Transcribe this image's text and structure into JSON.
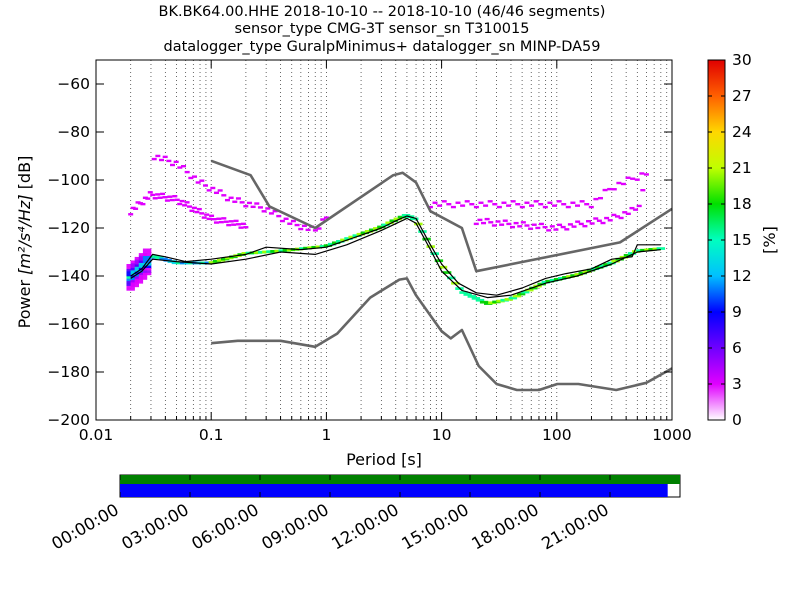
{
  "chart_data": {
    "type": "heatmap",
    "title_lines": [
      "BK.BK64.00.HHE   2018-10-10 -- 2018-10-10  (46/46 segments)",
      "sensor_type CMG-3T sensor_sn T310015",
      "datalogger_type GuralpMinimus+ datalogger_sn MINP-DA59"
    ],
    "xlabel": "Period [s]",
    "ylabel_prefix": "Power ",
    "ylabel_math": "[m²/s⁴/Hz]",
    "ylabel_suffix": " [dB]",
    "x_scale": "log",
    "xlim": [
      0.01,
      1000
    ],
    "ylim": [
      -200,
      -50
    ],
    "x_ticks": [
      0.01,
      0.1,
      1,
      10,
      100,
      1000
    ],
    "x_tick_labels": [
      "0.01",
      "0.1",
      "1",
      "10",
      "100",
      "1000"
    ],
    "y_ticks": [
      -200,
      -180,
      -160,
      -140,
      -120,
      -100,
      -80,
      -60
    ],
    "y_tick_labels": [
      "−200",
      "−180",
      "−160",
      "−140",
      "−120",
      "−100",
      "−80",
      "−60"
    ],
    "grid": "dotted-vertical",
    "colorbar": {
      "label": "[%]",
      "range": [
        0,
        30
      ],
      "ticks": [
        0,
        3,
        6,
        9,
        12,
        15,
        18,
        21,
        24,
        27,
        30
      ],
      "tick_labels": [
        "0",
        "3",
        "6",
        "9",
        "12",
        "15",
        "18",
        "21",
        "24",
        "27",
        "30"
      ]
    },
    "series": [
      {
        "name": "",
        "role": "noise-model-high",
        "color": "#666666",
        "points": [
          [
            0.1,
            -92
          ],
          [
            0.22,
            -98
          ],
          [
            0.32,
            -111
          ],
          [
            0.8,
            -120
          ],
          [
            3.8,
            -98
          ],
          [
            4.6,
            -97
          ],
          [
            6,
            -101
          ],
          [
            8,
            -113
          ],
          [
            15,
            -120
          ],
          [
            20,
            -138
          ],
          [
            354,
            -126
          ],
          [
            1000,
            -112
          ]
        ]
      },
      {
        "name": "",
        "role": "noise-model-low",
        "color": "#666666",
        "points": [
          [
            0.1,
            -168
          ],
          [
            0.17,
            -167
          ],
          [
            0.4,
            -167
          ],
          [
            0.8,
            -169.5
          ],
          [
            1.24,
            -164
          ],
          [
            2.4,
            -149
          ],
          [
            4.3,
            -141.5
          ],
          [
            5,
            -141
          ],
          [
            6,
            -148
          ],
          [
            10,
            -163
          ],
          [
            12,
            -166
          ],
          [
            15,
            -162.5
          ],
          [
            21,
            -177.5
          ],
          [
            30,
            -185
          ],
          [
            45,
            -187.5
          ],
          [
            70,
            -187.5
          ],
          [
            101,
            -185
          ],
          [
            154,
            -185
          ],
          [
            328,
            -187.5
          ],
          [
            600,
            -184.5
          ],
          [
            1000,
            -178.5
          ]
        ]
      },
      {
        "name": "",
        "role": "median",
        "color": "#000000",
        "points": [
          [
            0.02,
            -140
          ],
          [
            0.025,
            -137
          ],
          [
            0.031,
            -131
          ],
          [
            0.04,
            -132
          ],
          [
            0.06,
            -134
          ],
          [
            0.1,
            -133
          ],
          [
            0.2,
            -131
          ],
          [
            0.3,
            -128
          ],
          [
            0.6,
            -129
          ],
          [
            1,
            -128
          ],
          [
            2,
            -123
          ],
          [
            3,
            -120
          ],
          [
            4,
            -117
          ],
          [
            5,
            -115
          ],
          [
            6,
            -116
          ],
          [
            8,
            -127
          ],
          [
            10,
            -135
          ],
          [
            14,
            -143
          ],
          [
            20,
            -147
          ],
          [
            30,
            -148
          ],
          [
            50,
            -145
          ],
          [
            80,
            -141
          ],
          [
            120,
            -139
          ],
          [
            200,
            -137
          ],
          [
            300,
            -133
          ],
          [
            450,
            -132
          ],
          [
            500,
            -127
          ],
          [
            800,
            -127
          ]
        ]
      },
      {
        "name": "",
        "role": "mean",
        "color": "#000000",
        "points": [
          [
            0.02,
            -141
          ],
          [
            0.025,
            -138
          ],
          [
            0.031,
            -133
          ],
          [
            0.05,
            -134
          ],
          [
            0.1,
            -135
          ],
          [
            0.2,
            -133
          ],
          [
            0.4,
            -130
          ],
          [
            0.8,
            -131
          ],
          [
            1.5,
            -127
          ],
          [
            3,
            -121
          ],
          [
            5,
            -116
          ],
          [
            6,
            -118
          ],
          [
            8,
            -129
          ],
          [
            10,
            -138
          ],
          [
            15,
            -146
          ],
          [
            25,
            -149
          ],
          [
            40,
            -148
          ],
          [
            80,
            -143
          ],
          [
            150,
            -140
          ],
          [
            300,
            -135
          ],
          [
            500,
            -130
          ],
          [
            800,
            -129
          ]
        ]
      },
      {
        "name": "",
        "role": "density-core",
        "color": "#00d6e6",
        "points": [
          [
            0.02,
            -141
          ],
          [
            0.025,
            -137
          ],
          [
            0.031,
            -132
          ],
          [
            0.05,
            -135
          ],
          [
            0.1,
            -135
          ],
          [
            0.2,
            -131
          ],
          [
            0.4,
            -130
          ],
          [
            1,
            -128
          ],
          [
            2,
            -123
          ],
          [
            3,
            -120
          ],
          [
            4,
            -117
          ],
          [
            5,
            -115
          ],
          [
            6,
            -117
          ],
          [
            8,
            -128
          ],
          [
            10,
            -136
          ],
          [
            15,
            -147
          ],
          [
            25,
            -152
          ],
          [
            40,
            -150
          ],
          [
            80,
            -143
          ],
          [
            150,
            -140
          ],
          [
            300,
            -135
          ],
          [
            500,
            -130
          ],
          [
            800,
            -129
          ]
        ]
      },
      {
        "name": "",
        "role": "density-spread-upper",
        "color": "#8a00ff",
        "points": [
          [
            0.03,
            -130
          ],
          [
            0.1,
            -128
          ],
          [
            0.3,
            -126
          ],
          [
            1,
            -125
          ],
          [
            3,
            -119
          ],
          [
            5,
            -113
          ],
          [
            8,
            -123
          ],
          [
            12,
            -133
          ],
          [
            20,
            -141
          ],
          [
            40,
            -137
          ],
          [
            100,
            -130
          ],
          [
            300,
            -126
          ],
          [
            800,
            -124
          ]
        ]
      },
      {
        "name": "",
        "role": "density-spread-lower",
        "color": "#1030ff",
        "points": [
          [
            0.03,
            -137
          ],
          [
            0.1,
            -140
          ],
          [
            0.3,
            -137
          ],
          [
            1,
            -132
          ],
          [
            3,
            -124
          ],
          [
            5,
            -118
          ],
          [
            8,
            -132
          ],
          [
            12,
            -144
          ],
          [
            20,
            -153
          ],
          [
            40,
            -154
          ],
          [
            100,
            -145
          ],
          [
            300,
            -137
          ],
          [
            800,
            -133
          ]
        ]
      },
      {
        "name": "",
        "role": "outliers-upper-left",
        "color": "#e000ff",
        "points": [
          [
            0.032,
            -90
          ],
          [
            0.05,
            -93
          ],
          [
            0.08,
            -101
          ],
          [
            0.15,
            -108
          ],
          [
            0.3,
            -112
          ],
          [
            0.5,
            -118
          ],
          [
            0.8,
            -121
          ],
          [
            1,
            -115
          ]
        ]
      },
      {
        "name": "",
        "role": "outliers-left-2",
        "color": "#e000ff",
        "points": [
          [
            0.02,
            -113
          ],
          [
            0.03,
            -106
          ],
          [
            0.05,
            -108
          ],
          [
            0.1,
            -116
          ],
          [
            0.2,
            -119
          ]
        ]
      },
      {
        "name": "",
        "role": "outliers-right",
        "color": "#e000ff",
        "points": [
          [
            8,
            -110
          ],
          [
            50,
            -110
          ],
          [
            200,
            -110
          ],
          [
            300,
            -103
          ],
          [
            600,
            -97
          ]
        ]
      },
      {
        "name": "",
        "role": "outliers-right-2",
        "color": "#e000ff",
        "points": [
          [
            20,
            -117
          ],
          [
            100,
            -120
          ],
          [
            300,
            -116
          ],
          [
            500,
            -112
          ],
          [
            600,
            -100
          ]
        ]
      }
    ]
  },
  "timeline": {
    "segments_coverage": 0.978,
    "track_colors": [
      "#008000",
      "#0000ff"
    ],
    "tick_labels": [
      "00:00:00",
      "03:00:00",
      "06:00:00",
      "09:00:00",
      "12:00:00",
      "15:00:00",
      "18:00:00",
      "21:00:00"
    ]
  }
}
